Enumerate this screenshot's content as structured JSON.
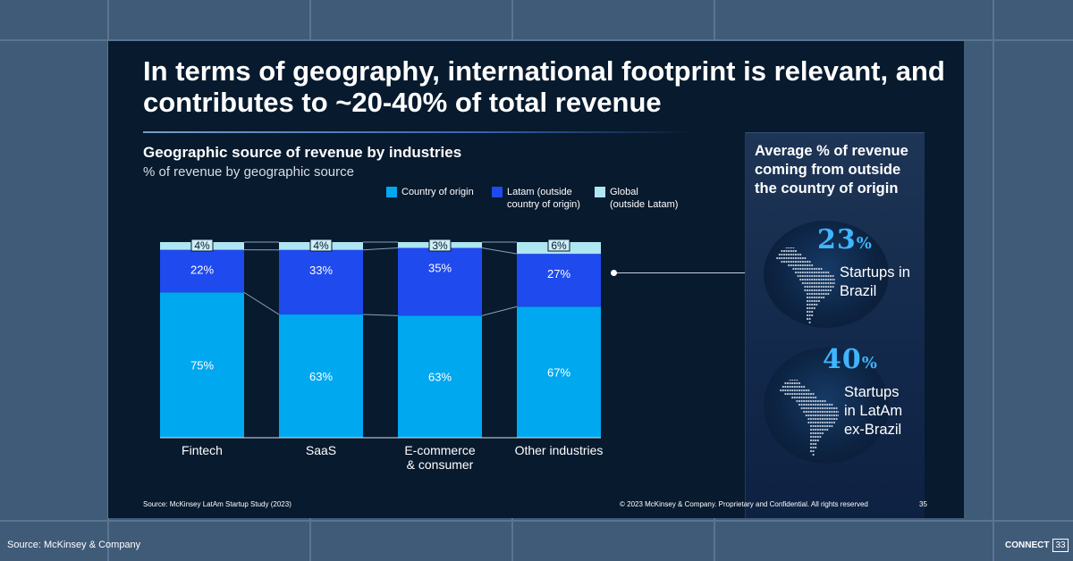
{
  "slide": {
    "title": "In terms of geography, international footprint is relevant, and contributes to ~20-40% of total revenue",
    "source_note": "Source: McKinsey LatAm Startup Study (2023)",
    "copyright": "© 2023 McKinsey & Company. Proprietary and Confidential. All rights reserved",
    "page_number": "35"
  },
  "chart_data": {
    "type": "bar",
    "stacked": true,
    "title": "Geographic source of revenue by industries",
    "subtitle": "% of revenue by geographic source",
    "categories": [
      "Fintech",
      "SaaS",
      "E-commerce\n& consumer",
      "Other industries"
    ],
    "series": [
      {
        "name": "Country of origin",
        "values": [
          75,
          63,
          63,
          67
        ],
        "color": "#00a8f0"
      },
      {
        "name": "Latam (outside\ncountry of origin)",
        "values": [
          22,
          33,
          35,
          27
        ],
        "color": "#1f4aee"
      },
      {
        "name": "Global\n(outside Latam)",
        "values": [
          4,
          4,
          3,
          6
        ],
        "color": "#aee6f2"
      }
    ],
    "labels": [
      [
        "75%",
        "63%",
        "63%",
        "67%"
      ],
      [
        "22%",
        "33%",
        "35%",
        "27%"
      ],
      [
        "4%",
        "4%",
        "3%",
        "6%"
      ]
    ],
    "ylim": [
      0,
      100
    ],
    "legend": "top",
    "grid": false
  },
  "side_panel": {
    "heading": "Average % of revenue coming from outside the country of origin",
    "stats": [
      {
        "value": "23",
        "unit": "%",
        "label": "Startups in\nBrazil"
      },
      {
        "value": "40",
        "unit": "%",
        "label": "Startups\nin LatAm\nex-Brazil"
      }
    ]
  },
  "footer": {
    "source": "Source: McKinsey & Company",
    "brand": "CONNECT",
    "page": "33"
  }
}
